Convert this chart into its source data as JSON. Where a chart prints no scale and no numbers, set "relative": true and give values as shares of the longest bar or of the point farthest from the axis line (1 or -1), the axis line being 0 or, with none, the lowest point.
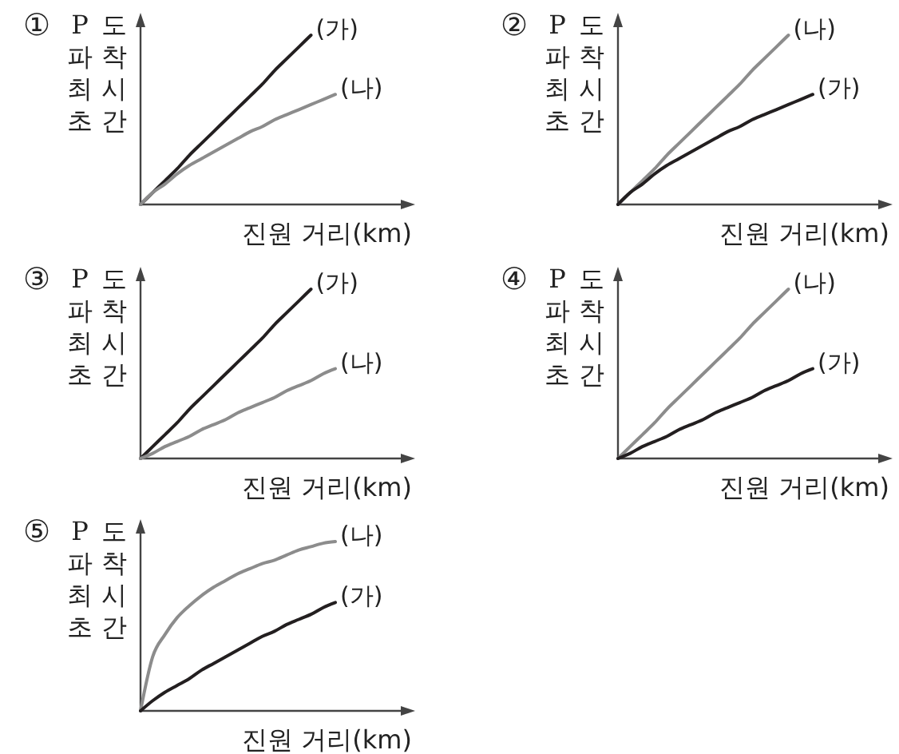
{
  "chart_data": [
    {
      "type": "line",
      "title": "①",
      "xlabel": "진원 거리(km)",
      "ylabel": "P파 최초 도착 시간",
      "relative": true,
      "categories": [
        null,
        null,
        null,
        null,
        null,
        null,
        null,
        null,
        null,
        null,
        null,
        null,
        null,
        null,
        null,
        null,
        null
      ],
      "series": [
        {
          "name": "(가)",
          "color": "#231f20",
          "values": [
            0,
            0.07,
            0.14,
            0.21,
            0.29,
            0.36,
            0.43,
            0.5,
            0.57,
            0.64,
            0.71,
            0.79,
            0.86,
            0.93,
            1,
            null,
            null
          ]
        },
        {
          "name": "(나)",
          "color": "#8c8c8c",
          "values": [
            0,
            0.07,
            0.12,
            0.18,
            0.23,
            0.27,
            0.31,
            0.35,
            0.39,
            0.43,
            0.46,
            0.5,
            0.53,
            0.56,
            0.59,
            0.62,
            0.65
          ]
        }
      ]
    },
    {
      "type": "line",
      "title": "②",
      "xlabel": "진원 거리(km)",
      "ylabel": "P파 최초 도착 시간",
      "relative": true,
      "categories": [
        null,
        null,
        null,
        null,
        null,
        null,
        null,
        null,
        null,
        null,
        null,
        null,
        null,
        null,
        null,
        null,
        null
      ],
      "series": [
        {
          "name": "(나)",
          "color": "#8c8c8c",
          "values": [
            0,
            0.07,
            0.14,
            0.21,
            0.29,
            0.36,
            0.43,
            0.5,
            0.57,
            0.64,
            0.71,
            0.79,
            0.86,
            0.93,
            1,
            null,
            null
          ]
        },
        {
          "name": "(가)",
          "color": "#231f20",
          "values": [
            0,
            0.07,
            0.12,
            0.18,
            0.23,
            0.27,
            0.31,
            0.35,
            0.39,
            0.43,
            0.46,
            0.5,
            0.53,
            0.56,
            0.59,
            0.62,
            0.65
          ]
        }
      ]
    },
    {
      "type": "line",
      "title": "③",
      "xlabel": "진원 거리(km)",
      "ylabel": "P파 최초 도착 시간",
      "relative": true,
      "categories": [
        null,
        null,
        null,
        null,
        null,
        null,
        null,
        null,
        null,
        null,
        null,
        null,
        null,
        null,
        null,
        null,
        null
      ],
      "series": [
        {
          "name": "(가)",
          "color": "#231f20",
          "values": [
            0,
            0.07,
            0.14,
            0.21,
            0.29,
            0.36,
            0.43,
            0.5,
            0.57,
            0.64,
            0.71,
            0.79,
            0.86,
            0.93,
            1,
            null,
            null
          ]
        },
        {
          "name": "(나)",
          "color": "#8c8c8c",
          "values": [
            0,
            0.03,
            0.07,
            0.1,
            0.13,
            0.17,
            0.2,
            0.23,
            0.27,
            0.3,
            0.33,
            0.36,
            0.4,
            0.43,
            0.46,
            0.5,
            0.53
          ]
        }
      ]
    },
    {
      "type": "line",
      "title": "④",
      "xlabel": "진원 거리(km)",
      "ylabel": "P파 최초 도착 시간",
      "relative": true,
      "categories": [
        null,
        null,
        null,
        null,
        null,
        null,
        null,
        null,
        null,
        null,
        null,
        null,
        null,
        null,
        null,
        null,
        null
      ],
      "series": [
        {
          "name": "(나)",
          "color": "#8c8c8c",
          "values": [
            0,
            0.07,
            0.14,
            0.21,
            0.29,
            0.36,
            0.43,
            0.5,
            0.57,
            0.64,
            0.71,
            0.79,
            0.86,
            0.93,
            1,
            null,
            null
          ]
        },
        {
          "name": "(가)",
          "color": "#231f20",
          "values": [
            0,
            0.03,
            0.07,
            0.1,
            0.13,
            0.17,
            0.2,
            0.23,
            0.27,
            0.3,
            0.33,
            0.36,
            0.4,
            0.43,
            0.46,
            0.5,
            0.53
          ]
        }
      ]
    },
    {
      "type": "line",
      "title": "⑤",
      "xlabel": "진원 거리(km)",
      "ylabel": "P파 최초 도착 시간",
      "relative": true,
      "categories": [
        null,
        null,
        null,
        null,
        null,
        null,
        null,
        null,
        null,
        null,
        null,
        null,
        null,
        null,
        null,
        null,
        null
      ],
      "series": [
        {
          "name": "(나)",
          "color": "#8c8c8c",
          "values": [
            0,
            0.32,
            0.45,
            0.55,
            0.62,
            0.68,
            0.73,
            0.77,
            0.81,
            0.84,
            0.87,
            0.89,
            0.92,
            0.95,
            0.97,
            0.99,
            1
          ]
        },
        {
          "name": "(가)",
          "color": "#231f20",
          "values": [
            0,
            0.06,
            0.11,
            0.15,
            0.19,
            0.24,
            0.28,
            0.32,
            0.36,
            0.4,
            0.44,
            0.47,
            0.51,
            0.54,
            0.57,
            0.61,
            0.64
          ]
        }
      ]
    }
  ]
}
